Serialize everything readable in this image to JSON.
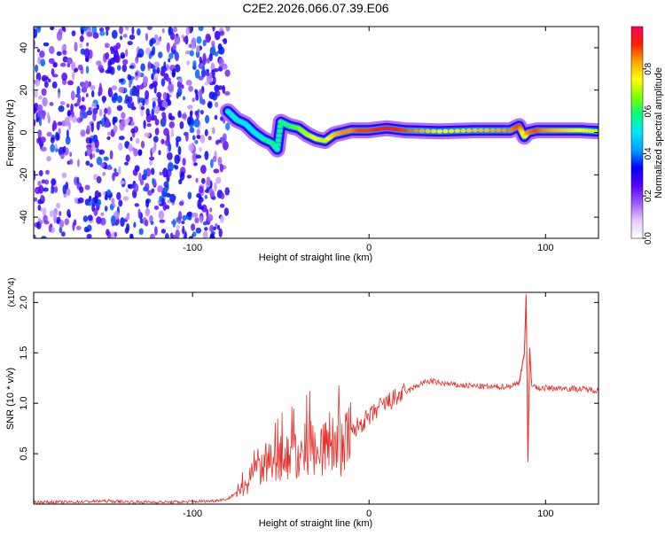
{
  "title": "C2E2.2026.066.07.39.E06",
  "chart_data": [
    {
      "type": "heatmap",
      "title": "C2E2.2026.066.07.39.E06",
      "xlabel": "Height of straight line (km)",
      "ylabel": "Frequency (Hz)",
      "xlim": [
        -190,
        130
      ],
      "ylim": [
        -50,
        50
      ],
      "xticks": [
        -100,
        0,
        100
      ],
      "yticks": [
        -40,
        -20,
        0,
        20,
        40
      ],
      "grid": false,
      "colorbar": {
        "label": "Normalized spectral amplitude",
        "range": [
          0,
          1
        ],
        "ticks": [
          "0.0",
          "0.2",
          "0.4",
          "0.6",
          "0.8"
        ],
        "colors": [
          "#ffffff",
          "#e6ccff",
          "#9b59ff",
          "#5a00ff",
          "#0000ff",
          "#00a0ff",
          "#00e5ff",
          "#00ff7f",
          "#7fff00",
          "#ffff00",
          "#ffa500",
          "#ff2000",
          "#ff0060"
        ]
      },
      "noise_region": {
        "x": [
          -190,
          -80
        ],
        "amplitude": [
          0.1,
          0.4
        ]
      },
      "ridge": {
        "x": [
          -80,
          -75,
          -70,
          -65,
          -60,
          -55,
          -52,
          -50,
          -45,
          -40,
          -35,
          -30,
          -25,
          -20,
          -15,
          -10,
          -5,
          0,
          10,
          20,
          40,
          60,
          80,
          85,
          88,
          90,
          95,
          100,
          110,
          120,
          130
        ],
        "y": [
          10,
          6,
          4,
          0,
          -3,
          -5,
          -8,
          5,
          3,
          2,
          -1,
          -3,
          -4,
          -1,
          0,
          1,
          1,
          1,
          2,
          1,
          0.5,
          1,
          1,
          3,
          -2,
          0,
          1,
          1,
          1,
          1,
          0.5
        ],
        "amplitude": [
          0.5,
          0.55,
          0.5,
          0.5,
          0.55,
          0.6,
          0.55,
          0.6,
          0.6,
          0.65,
          0.7,
          0.75,
          0.7,
          0.8,
          0.85,
          0.85,
          0.9,
          0.9,
          0.95,
          0.9,
          0.75,
          0.8,
          0.85,
          0.9,
          0.7,
          0.85,
          0.9,
          0.85,
          0.8,
          0.75,
          0.7
        ]
      }
    },
    {
      "type": "line",
      "xlabel": "Height of straight line (km)",
      "ylabel": "SNR (10 * v/v)",
      "y_multiplier": "(x10^4)",
      "xlim": [
        -190,
        130
      ],
      "ylim": [
        0,
        2.1
      ],
      "xticks": [
        -100,
        0,
        100
      ],
      "yticks": [
        0.5,
        1.0,
        1.5,
        2.0
      ],
      "color": "#e8302a",
      "x": [
        -190,
        -170,
        -150,
        -130,
        -110,
        -90,
        -80,
        -75,
        -70,
        -65,
        -60,
        -55,
        -50,
        -45,
        -40,
        -35,
        -30,
        -25,
        -20,
        -15,
        -10,
        -5,
        0,
        5,
        10,
        20,
        30,
        35,
        40,
        50,
        60,
        70,
        80,
        85,
        88,
        89,
        90,
        91,
        92,
        95,
        100,
        110,
        120,
        130
      ],
      "y": [
        0.02,
        0.02,
        0.03,
        0.02,
        0.02,
        0.03,
        0.05,
        0.12,
        0.18,
        0.35,
        0.4,
        0.38,
        0.45,
        0.5,
        0.45,
        0.55,
        0.6,
        0.55,
        0.65,
        0.55,
        0.7,
        0.8,
        0.85,
        0.95,
        1.0,
        1.1,
        1.2,
        1.22,
        1.2,
        1.18,
        1.17,
        1.16,
        1.17,
        1.2,
        1.5,
        2.08,
        0.42,
        1.55,
        1.2,
        1.15,
        1.15,
        1.15,
        1.14,
        1.13
      ]
    }
  ]
}
